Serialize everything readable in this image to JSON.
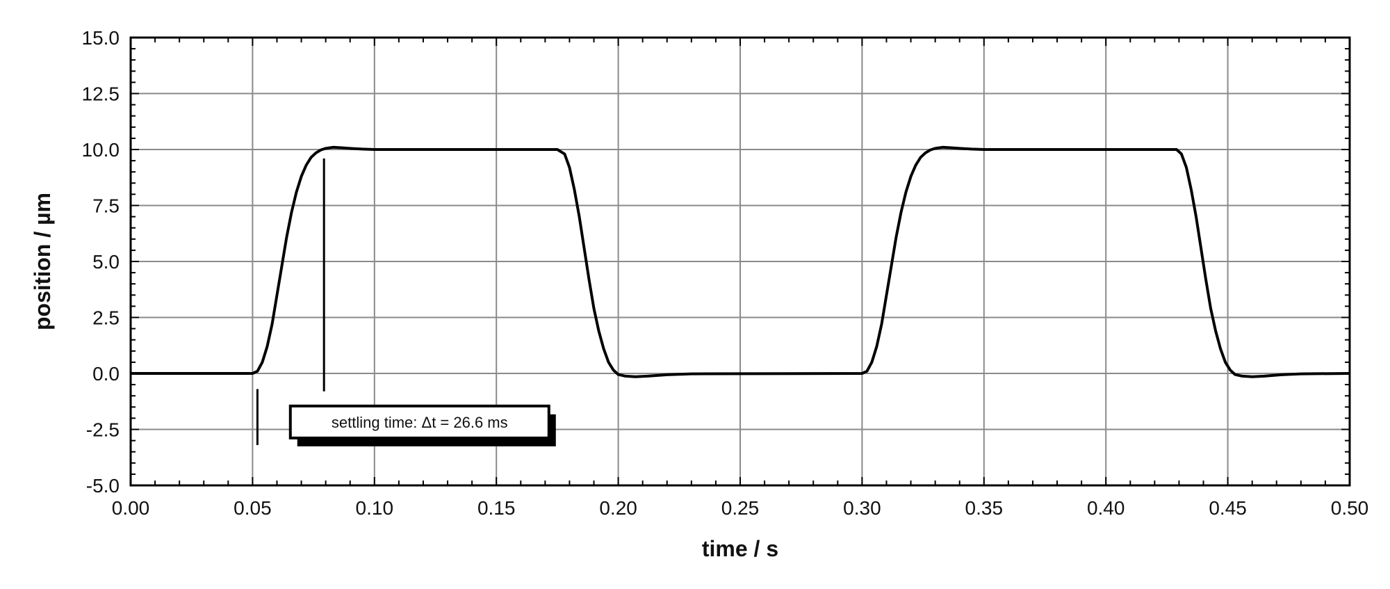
{
  "chart_data": {
    "type": "line",
    "title": "",
    "xlabel": "time  / s",
    "ylabel": "position  / µm",
    "xlim": [
      0.0,
      0.5
    ],
    "ylim": [
      -5.0,
      15.0
    ],
    "grid": true,
    "x_ticks": [
      "0.00",
      "0.05",
      "0.10",
      "0.15",
      "0.20",
      "0.25",
      "0.30",
      "0.35",
      "0.40",
      "0.45",
      "0.50"
    ],
    "y_ticks": [
      "-5.0",
      "-2.5",
      "0.0",
      "2.5",
      "5.0",
      "7.5",
      "10.0",
      "12.5",
      "15.0"
    ],
    "series": [
      {
        "color": "#000000",
        "x": [
          0.0,
          0.05,
          0.052,
          0.054,
          0.056,
          0.058,
          0.06,
          0.062,
          0.064,
          0.066,
          0.068,
          0.07,
          0.072,
          0.074,
          0.076,
          0.078,
          0.08,
          0.083,
          0.086,
          0.09,
          0.095,
          0.1,
          0.15,
          0.175,
          0.178,
          0.18,
          0.182,
          0.184,
          0.186,
          0.188,
          0.19,
          0.192,
          0.194,
          0.196,
          0.198,
          0.2,
          0.203,
          0.207,
          0.212,
          0.22,
          0.23,
          0.3,
          0.302,
          0.304,
          0.306,
          0.308,
          0.31,
          0.312,
          0.314,
          0.316,
          0.318,
          0.32,
          0.322,
          0.324,
          0.326,
          0.328,
          0.33,
          0.333,
          0.336,
          0.34,
          0.345,
          0.35,
          0.4,
          0.429,
          0.431,
          0.433,
          0.435,
          0.437,
          0.439,
          0.441,
          0.443,
          0.445,
          0.447,
          0.449,
          0.451,
          0.453,
          0.456,
          0.46,
          0.465,
          0.472,
          0.48,
          0.5
        ],
        "y": [
          0.0,
          0.0,
          0.1,
          0.5,
          1.2,
          2.2,
          3.5,
          4.8,
          6.1,
          7.2,
          8.1,
          8.8,
          9.3,
          9.65,
          9.85,
          9.98,
          10.05,
          10.1,
          10.08,
          10.05,
          10.02,
          10.0,
          10.0,
          10.0,
          9.8,
          9.2,
          8.2,
          7.0,
          5.6,
          4.2,
          2.9,
          1.9,
          1.1,
          0.5,
          0.15,
          -0.05,
          -0.12,
          -0.15,
          -0.12,
          -0.06,
          -0.02,
          0.0,
          0.1,
          0.5,
          1.2,
          2.2,
          3.5,
          4.8,
          6.1,
          7.2,
          8.1,
          8.8,
          9.3,
          9.65,
          9.85,
          9.98,
          10.05,
          10.1,
          10.08,
          10.05,
          10.02,
          10.0,
          10.0,
          10.0,
          9.8,
          9.2,
          8.2,
          7.0,
          5.6,
          4.2,
          2.9,
          1.9,
          1.1,
          0.5,
          0.15,
          -0.05,
          -0.12,
          -0.15,
          -0.12,
          -0.06,
          -0.02,
          0.0
        ]
      }
    ],
    "annotations": [
      {
        "type": "marker",
        "x": 0.052,
        "y1": -3.2,
        "y2": -0.7
      },
      {
        "type": "marker",
        "x": 0.0793,
        "y1": -0.8,
        "y2": 9.6
      },
      {
        "type": "label",
        "text": "settling time: Δt = 26.6 ms",
        "x": 0.0655,
        "y": -2.2
      }
    ]
  }
}
